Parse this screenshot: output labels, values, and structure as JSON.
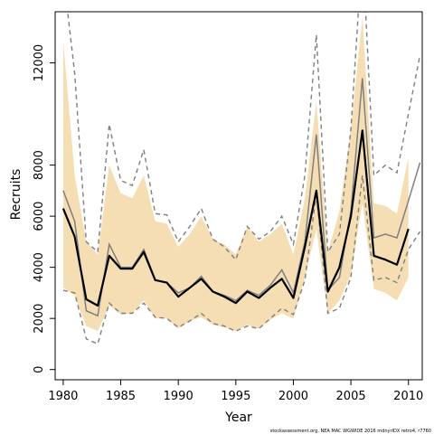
{
  "chart_data": {
    "type": "line",
    "xlabel": "Year",
    "ylabel": "Recruits",
    "footnote": "stockassessment.org, NEA MAC WGWIDE 2016 mdnyrIDX retro4, r7760",
    "xlim": [
      1979.3,
      2011.2
    ],
    "ylim": [
      -400,
      14000
    ],
    "x_ticks": [
      1980,
      1985,
      1990,
      1995,
      2000,
      2005,
      2010
    ],
    "y_ticks": [
      0,
      2000,
      4000,
      6000,
      8000,
      12000
    ],
    "x": [
      1980,
      1981,
      1982,
      1983,
      1984,
      1985,
      1986,
      1987,
      1988,
      1989,
      1990,
      1991,
      1992,
      1993,
      1994,
      1995,
      1996,
      1997,
      1998,
      1999,
      2000,
      2001,
      2002,
      2003,
      2004,
      2005,
      2006,
      2007,
      2008,
      2009,
      2010,
      2011
    ],
    "colors": {
      "band": "#f5deb3",
      "series": "#000000",
      "comparison": "#7f7f7f"
    },
    "series": [
      {
        "role": "estimate",
        "values": [
          6300,
          5200,
          2750,
          2500,
          4450,
          3950,
          3950,
          4600,
          3500,
          3400,
          2850,
          3200,
          3550,
          3050,
          2850,
          2600,
          3050,
          2800,
          3200,
          3550,
          2800,
          4800,
          7000,
          3050,
          4000,
          6000,
          9350,
          4450,
          4300,
          4100,
          5500,
          null
        ]
      },
      {
        "role": "ci-lower",
        "values": [
          3200,
          2900,
          1700,
          1500,
          2500,
          2150,
          2200,
          2700,
          2000,
          2000,
          1600,
          1900,
          2050,
          1750,
          1650,
          1500,
          1750,
          1600,
          1950,
          2200,
          2000,
          3600,
          5500,
          2200,
          2700,
          3700,
          6500,
          3150,
          3000,
          2700,
          3600,
          null
        ]
      },
      {
        "role": "ci-upper",
        "values": [
          12900,
          7600,
          5000,
          4500,
          8000,
          6900,
          6700,
          7600,
          5800,
          5700,
          4800,
          5300,
          6000,
          5100,
          4900,
          4500,
          5600,
          5000,
          5300,
          5700,
          4500,
          6700,
          10500,
          4600,
          6200,
          9400,
          13800,
          6500,
          6400,
          6100,
          8300,
          null
        ]
      },
      {
        "role": "comparison",
        "values": [
          7000,
          5800,
          2300,
          2100,
          4900,
          4000,
          4000,
          4700,
          3500,
          3400,
          3000,
          3200,
          3650,
          3050,
          2900,
          2700,
          3100,
          2900,
          3300,
          3900,
          3000,
          5000,
          9200,
          3100,
          3600,
          6200,
          11400,
          5150,
          5300,
          5150,
          6600,
          8100
        ]
      },
      {
        "role": "comparison-lower",
        "values": [
          3100,
          3000,
          1200,
          1000,
          2600,
          2200,
          2200,
          2600,
          2050,
          2000,
          1650,
          1900,
          2200,
          1800,
          1700,
          1500,
          1700,
          1600,
          2000,
          2400,
          2150,
          3500,
          6900,
          2200,
          2400,
          3600,
          7600,
          3500,
          3600,
          3400,
          4700,
          5400
        ]
      },
      {
        "role": "comparison-upper",
        "values": [
          15500,
          11600,
          5000,
          4600,
          9600,
          7400,
          7200,
          8600,
          6100,
          6050,
          5000,
          5600,
          6300,
          5100,
          4800,
          4300,
          5600,
          5100,
          5400,
          6000,
          4900,
          7600,
          13100,
          4600,
          5300,
          9400,
          16500,
          7600,
          8000,
          7700,
          10000,
          12300
        ]
      }
    ]
  }
}
